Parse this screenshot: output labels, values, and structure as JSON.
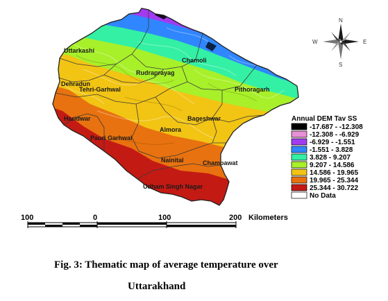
{
  "map": {
    "districts": [
      {
        "id": "uttarkashi",
        "label": "Uttarkashi"
      },
      {
        "id": "chamoli",
        "label": "Chamoli"
      },
      {
        "id": "rudraprayag",
        "label": "Rudraprayag"
      },
      {
        "id": "dehradun",
        "label": "Dehradun"
      },
      {
        "id": "tehri-garhwal",
        "label": "Tehri-Garhwal"
      },
      {
        "id": "pithoragarh",
        "label": "Pithoragarh"
      },
      {
        "id": "haridwar",
        "label": "Haridwar"
      },
      {
        "id": "bageshwar",
        "label": "Bageshwar"
      },
      {
        "id": "almora",
        "label": "Almora"
      },
      {
        "id": "pauri-garhwal",
        "label": "Pauri Garhwal"
      },
      {
        "id": "nainital",
        "label": "Nainital"
      },
      {
        "id": "champawat",
        "label": "Champawat"
      },
      {
        "id": "udham-singh-nagar",
        "label": "Udham Singh Nagar"
      }
    ],
    "compass": {
      "n": "N",
      "s": "S",
      "e": "E",
      "w": "W"
    },
    "legend": {
      "title": "Annual DEM Tav SS",
      "classes": [
        {
          "label": "-17.687 - -12.308",
          "color": "#000000"
        },
        {
          "label": "-12.308 - -6.929",
          "color": "#e98fd6"
        },
        {
          "label": "-6.929 - -1.551",
          "color": "#a23bf0"
        },
        {
          "label": "-1.551 - 3.828",
          "color": "#2f86ff"
        },
        {
          "label": "3.828 - 9.207",
          "color": "#33f0a4"
        },
        {
          "label": "9.207 - 14.586",
          "color": "#a8f02a"
        },
        {
          "label": "14.586 - 19.965",
          "color": "#f2c414"
        },
        {
          "label": "19.965 - 25.344",
          "color": "#e8720f"
        },
        {
          "label": "25.344 - 30.722",
          "color": "#c41a14"
        },
        {
          "label": "No Data",
          "color": "#ffffff"
        }
      ]
    },
    "scale_bar": {
      "ticks": [
        "100",
        "0",
        "100",
        "200"
      ],
      "unit": "Kilometers"
    }
  },
  "caption": {
    "line1": "Fig. 3: Thematic map of average temperature over",
    "line2": "Uttarakhand"
  }
}
